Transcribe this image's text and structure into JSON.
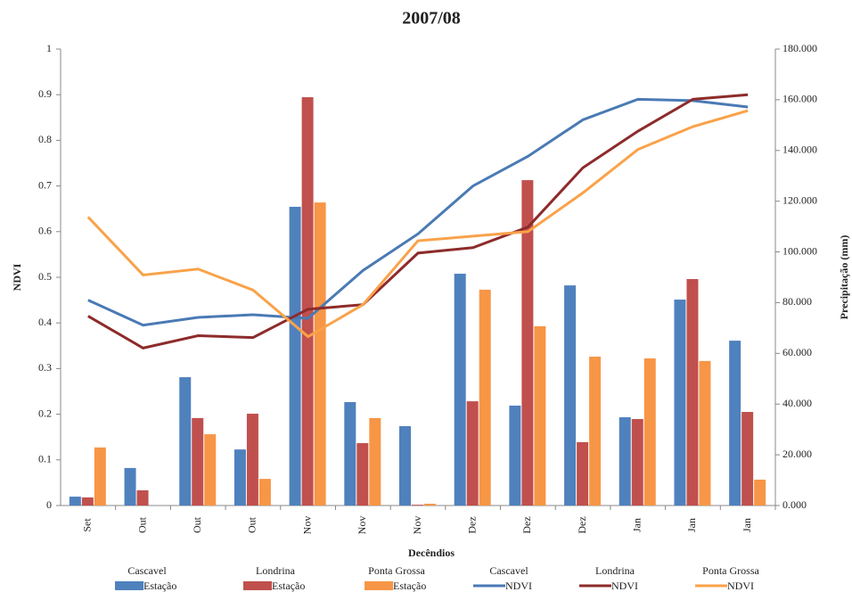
{
  "chart_data": {
    "type": "bar-line",
    "title": "2007/08",
    "xlabel": "Decêndios",
    "ylabel": "NDVI",
    "y2label": "Precipitação (mm)",
    "categories": [
      "Set",
      "Out",
      "Out",
      "Out",
      "Nov",
      "Nov",
      "Nov",
      "Dez",
      "Dez",
      "Dez",
      "Jan",
      "Jan",
      "Jan"
    ],
    "ylim": [
      0,
      1
    ],
    "yticks": [
      0,
      0.1,
      0.2,
      0.3,
      0.4,
      0.5,
      0.6,
      0.7,
      0.8,
      0.9,
      1
    ],
    "y2lim": [
      0,
      180
    ],
    "y2ticks": [
      {
        "value": 0,
        "label": "0.000"
      },
      {
        "value": 20,
        "label": "20.000"
      },
      {
        "value": 40,
        "label": "40.000"
      },
      {
        "value": 60,
        "label": "60.000"
      },
      {
        "value": 80,
        "label": "80.000"
      },
      {
        "value": 100,
        "label": "100.000"
      },
      {
        "value": 120,
        "label": "120.000"
      },
      {
        "value": 140,
        "label": "140.000"
      },
      {
        "value": 160,
        "label": "160.000"
      },
      {
        "value": 180,
        "label": "180.000"
      }
    ],
    "series": [
      {
        "group": "Cascavel",
        "name": "Estação",
        "kind": "bar",
        "axis": "y2",
        "color": "#4f81bd",
        "values": [
          3.5,
          14.8,
          50.6,
          22.1,
          117.8,
          40.8,
          31.3,
          91.4,
          39.4,
          86.8,
          34.8,
          81.2,
          65.0
        ]
      },
      {
        "group": "Londrina",
        "name": "Estação",
        "kind": "bar",
        "axis": "y2",
        "color": "#c0504d",
        "values": [
          3.2,
          6.0,
          34.5,
          36.2,
          161.0,
          24.6,
          0.3,
          41.1,
          128.3,
          25.0,
          34.1,
          89.3,
          36.9
        ]
      },
      {
        "group": "Ponta Grossa",
        "name": "Estação",
        "kind": "bar",
        "axis": "y2",
        "color": "#f79646",
        "values": [
          22.9,
          0,
          28.1,
          10.5,
          119.5,
          34.5,
          0.7,
          85.1,
          70.7,
          58.7,
          58.0,
          57.0,
          10.2
        ]
      },
      {
        "group": "Cascavel",
        "name": "NDVI",
        "kind": "line",
        "color": "#4a7ab4",
        "values": [
          0.45,
          0.395,
          0.412,
          0.418,
          0.41,
          0.515,
          0.595,
          0.7,
          0.765,
          0.845,
          0.89,
          0.887,
          0.873
        ]
      },
      {
        "group": "Londrina",
        "name": "NDVI",
        "kind": "line",
        "color": "#8e2b2b",
        "values": [
          0.415,
          0.345,
          0.372,
          0.368,
          0.43,
          0.44,
          0.553,
          0.565,
          0.61,
          0.74,
          0.82,
          0.89,
          0.9
        ]
      },
      {
        "group": "Ponta Grossa",
        "name": "NDVI",
        "kind": "line",
        "color": "#f9a24a",
        "values": [
          0.632,
          0.505,
          0.518,
          0.472,
          0.37,
          0.44,
          0.58,
          0.59,
          0.6,
          0.685,
          0.78,
          0.83,
          0.865
        ]
      }
    ]
  }
}
